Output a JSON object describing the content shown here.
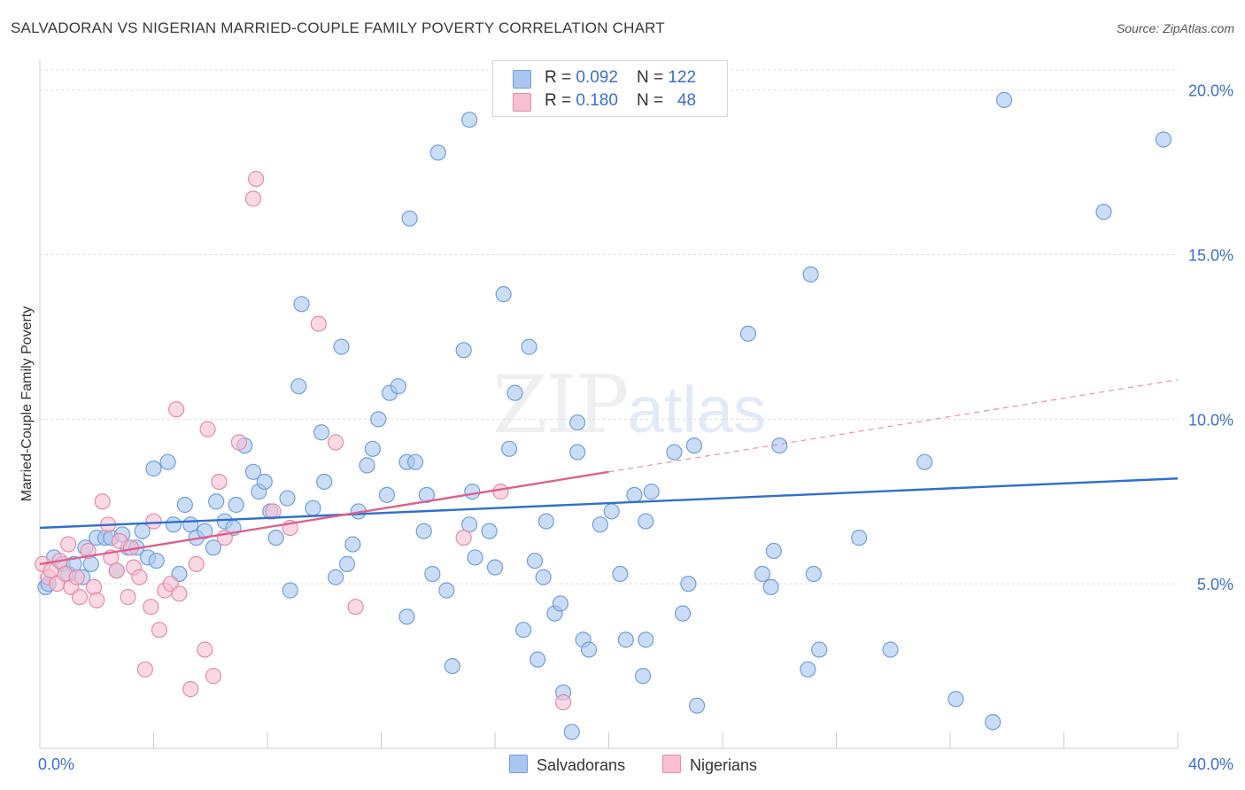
{
  "title": "SALVADORAN VS NIGERIAN MARRIED-COUPLE FAMILY POVERTY CORRELATION CHART",
  "source": "Source: ZipAtlas.com",
  "watermark_zip": "ZIP",
  "watermark_atlas": "atlas",
  "legend_top": [
    {
      "r_label": "R = ",
      "r_value": "0.092",
      "n_label": "N = ",
      "n_value": "122"
    },
    {
      "r_label": "R = ",
      "r_value": "0.180",
      "n_label": "N = ",
      "n_value": "48"
    }
  ],
  "legend_bottom": [
    "Salvadorans",
    "Nigerians"
  ],
  "colors": {
    "salvadoran_fill": "#a9c6f0",
    "salvadoran_stroke": "#6f9fdc",
    "salvadoran_line": "#2f6fd0",
    "nigerian_fill": "#f7c0d2",
    "nigerian_stroke": "#e58aab",
    "nigerian_line": "#e0608d",
    "grid": "#dddddd",
    "tick_label": "#3a6fcf"
  },
  "chart_data": {
    "type": "scatter",
    "title": "SALVADORAN VS NIGERIAN MARRIED-COUPLE FAMILY POVERTY CORRELATION CHART",
    "xlabel": "",
    "ylabel": "Married-Couple Family Poverty",
    "xlim": [
      0,
      40
    ],
    "ylim": [
      0,
      20.8
    ],
    "x_tick_labels": [
      "0.0%",
      "40.0%"
    ],
    "y_ticks": [
      5,
      10,
      15,
      20
    ],
    "y_tick_labels": [
      "5.0%",
      "10.0%",
      "15.0%",
      "20.0%"
    ],
    "grid": "horizontal dashed",
    "legend_placement": "top-center and bottom-center",
    "series": [
      {
        "name": "Salvadorans",
        "r": 0.092,
        "n": 122,
        "trend": {
          "x": [
            0,
            40
          ],
          "y": [
            6.7,
            8.2
          ],
          "style": "solid"
        },
        "points": [
          [
            0.2,
            4.9
          ],
          [
            0.3,
            5.0
          ],
          [
            0.5,
            5.8
          ],
          [
            0.8,
            5.6
          ],
          [
            1.0,
            5.3
          ],
          [
            1.2,
            5.6
          ],
          [
            1.5,
            5.2
          ],
          [
            1.6,
            6.1
          ],
          [
            1.8,
            5.6
          ],
          [
            2.0,
            6.4
          ],
          [
            2.3,
            6.4
          ],
          [
            2.5,
            6.4
          ],
          [
            2.7,
            5.4
          ],
          [
            2.9,
            6.5
          ],
          [
            3.1,
            6.1
          ],
          [
            3.4,
            6.1
          ],
          [
            3.6,
            6.6
          ],
          [
            3.8,
            5.8
          ],
          [
            4.1,
            5.7
          ],
          [
            4.0,
            8.5
          ],
          [
            4.5,
            8.7
          ],
          [
            4.7,
            6.8
          ],
          [
            4.9,
            5.3
          ],
          [
            5.1,
            7.4
          ],
          [
            5.3,
            6.8
          ],
          [
            5.5,
            6.4
          ],
          [
            5.8,
            6.6
          ],
          [
            6.1,
            6.1
          ],
          [
            6.2,
            7.5
          ],
          [
            6.5,
            6.9
          ],
          [
            6.8,
            6.7
          ],
          [
            6.9,
            7.4
          ],
          [
            7.2,
            9.2
          ],
          [
            7.5,
            8.4
          ],
          [
            7.7,
            7.8
          ],
          [
            7.9,
            8.1
          ],
          [
            8.1,
            7.2
          ],
          [
            8.3,
            6.4
          ],
          [
            8.7,
            7.6
          ],
          [
            8.8,
            4.8
          ],
          [
            9.1,
            11.0
          ],
          [
            9.2,
            13.5
          ],
          [
            9.6,
            7.3
          ],
          [
            9.9,
            9.6
          ],
          [
            10.0,
            8.1
          ],
          [
            10.4,
            5.2
          ],
          [
            10.6,
            12.2
          ],
          [
            10.8,
            5.6
          ],
          [
            11.0,
            6.2
          ],
          [
            11.2,
            7.2
          ],
          [
            11.5,
            8.6
          ],
          [
            11.7,
            9.1
          ],
          [
            11.9,
            10.0
          ],
          [
            12.2,
            7.7
          ],
          [
            12.3,
            10.8
          ],
          [
            12.6,
            11.0
          ],
          [
            12.9,
            8.7
          ],
          [
            12.9,
            4.0
          ],
          [
            13.2,
            8.7
          ],
          [
            13.5,
            6.6
          ],
          [
            13.6,
            7.7
          ],
          [
            13.0,
            16.1
          ],
          [
            14.0,
            18.1
          ],
          [
            13.8,
            5.3
          ],
          [
            14.3,
            4.8
          ],
          [
            14.5,
            2.5
          ],
          [
            14.9,
            12.1
          ],
          [
            15.1,
            6.8
          ],
          [
            15.3,
            5.8
          ],
          [
            15.1,
            19.1
          ],
          [
            15.2,
            7.8
          ],
          [
            15.8,
            6.6
          ],
          [
            16.0,
            5.5
          ],
          [
            16.3,
            13.8
          ],
          [
            16.5,
            9.1
          ],
          [
            16.7,
            10.8
          ],
          [
            17.0,
            3.6
          ],
          [
            17.2,
            12.2
          ],
          [
            17.4,
            5.7
          ],
          [
            17.7,
            5.2
          ],
          [
            17.5,
            2.7
          ],
          [
            17.8,
            6.9
          ],
          [
            18.1,
            4.1
          ],
          [
            18.3,
            4.4
          ],
          [
            18.4,
            1.7
          ],
          [
            18.7,
            0.5
          ],
          [
            18.9,
            9.9
          ],
          [
            18.9,
            9.0
          ],
          [
            19.1,
            3.3
          ],
          [
            19.3,
            3.0
          ],
          [
            19.7,
            6.8
          ],
          [
            20.1,
            7.2
          ],
          [
            20.4,
            5.3
          ],
          [
            20.9,
            7.7
          ],
          [
            21.2,
            2.2
          ],
          [
            21.3,
            6.9
          ],
          [
            20.6,
            3.3
          ],
          [
            21.5,
            7.8
          ],
          [
            21.3,
            3.3
          ],
          [
            22.3,
            9.0
          ],
          [
            22.6,
            4.1
          ],
          [
            22.8,
            5.0
          ],
          [
            23.0,
            9.2
          ],
          [
            23.1,
            1.3
          ],
          [
            24.9,
            12.6
          ],
          [
            25.4,
            5.3
          ],
          [
            25.7,
            4.9
          ],
          [
            25.8,
            6.0
          ],
          [
            26.0,
            9.2
          ],
          [
            27.0,
            2.4
          ],
          [
            27.1,
            14.4
          ],
          [
            27.2,
            5.3
          ],
          [
            27.4,
            3.0
          ],
          [
            28.8,
            6.4
          ],
          [
            29.9,
            3.0
          ],
          [
            31.1,
            8.7
          ],
          [
            32.2,
            1.5
          ],
          [
            33.5,
            0.8
          ],
          [
            33.9,
            19.7
          ],
          [
            37.4,
            16.3
          ],
          [
            39.5,
            18.5
          ]
        ]
      },
      {
        "name": "Nigerians",
        "r": 0.18,
        "n": 48,
        "trend": {
          "x": [
            0,
            20
          ],
          "y": [
            5.6,
            8.4
          ],
          "style": "solid",
          "extension": {
            "x": [
              20,
              40
            ],
            "y": [
              8.4,
              11.2
            ],
            "style": "dashed"
          }
        },
        "points": [
          [
            0.1,
            5.6
          ],
          [
            0.3,
            5.2
          ],
          [
            0.4,
            5.4
          ],
          [
            0.6,
            5.0
          ],
          [
            0.7,
            5.7
          ],
          [
            0.9,
            5.3
          ],
          [
            1.0,
            6.2
          ],
          [
            1.1,
            4.9
          ],
          [
            1.3,
            5.2
          ],
          [
            1.4,
            4.6
          ],
          [
            1.7,
            6.0
          ],
          [
            1.9,
            4.9
          ],
          [
            2.0,
            4.5
          ],
          [
            2.2,
            7.5
          ],
          [
            2.4,
            6.8
          ],
          [
            2.5,
            5.8
          ],
          [
            2.7,
            5.4
          ],
          [
            2.8,
            6.3
          ],
          [
            3.1,
            4.6
          ],
          [
            3.2,
            6.1
          ],
          [
            3.3,
            5.5
          ],
          [
            3.5,
            5.2
          ],
          [
            3.7,
            2.4
          ],
          [
            3.9,
            4.3
          ],
          [
            4.0,
            6.9
          ],
          [
            4.2,
            3.6
          ],
          [
            4.4,
            4.8
          ],
          [
            4.6,
            5.0
          ],
          [
            4.8,
            10.3
          ],
          [
            4.9,
            4.7
          ],
          [
            5.3,
            1.8
          ],
          [
            5.5,
            5.6
          ],
          [
            5.8,
            3.0
          ],
          [
            5.9,
            9.7
          ],
          [
            6.1,
            2.2
          ],
          [
            6.3,
            8.1
          ],
          [
            6.5,
            6.4
          ],
          [
            7.0,
            9.3
          ],
          [
            7.5,
            16.7
          ],
          [
            7.6,
            17.3
          ],
          [
            8.2,
            7.2
          ],
          [
            8.8,
            6.7
          ],
          [
            9.8,
            12.9
          ],
          [
            10.4,
            9.3
          ],
          [
            11.1,
            4.3
          ],
          [
            14.9,
            6.4
          ],
          [
            16.2,
            7.8
          ],
          [
            18.4,
            1.4
          ]
        ]
      }
    ]
  }
}
